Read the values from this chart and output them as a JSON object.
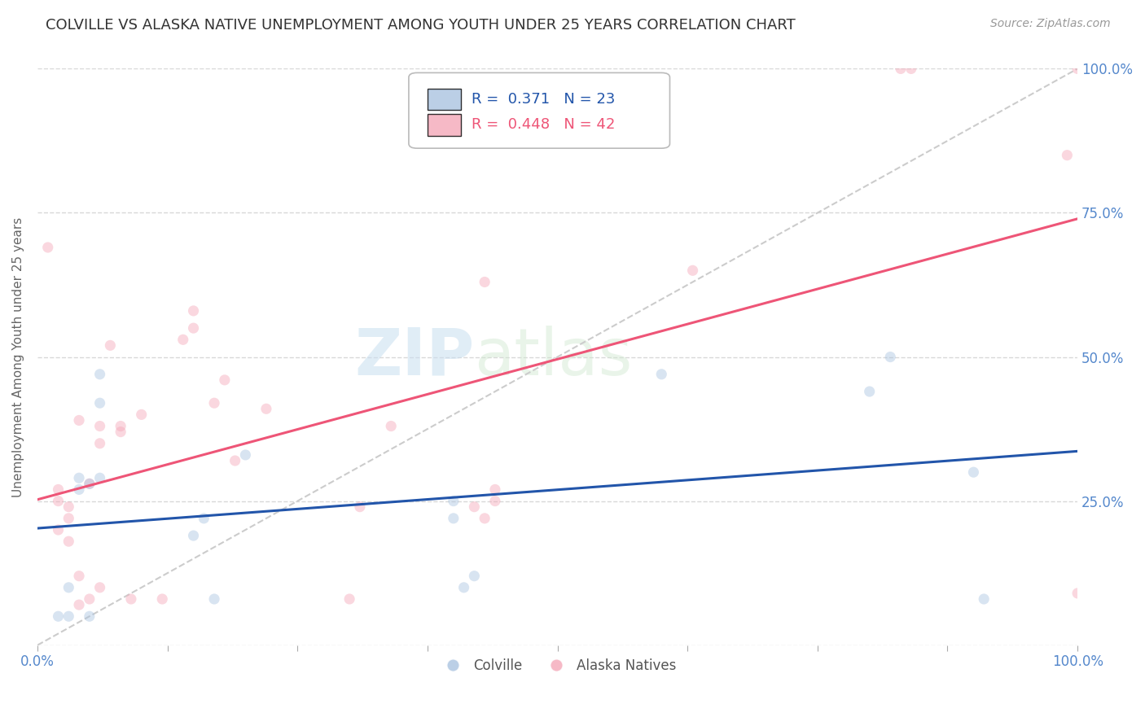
{
  "title": "COLVILLE VS ALASKA NATIVE UNEMPLOYMENT AMONG YOUTH UNDER 25 YEARS CORRELATION CHART",
  "source": "Source: ZipAtlas.com",
  "ylabel": "Unemployment Among Youth under 25 years",
  "watermark_zip": "ZIP",
  "watermark_atlas": "atlas",
  "colville_color": "#aac4e0",
  "alaska_color": "#f4a8b8",
  "colville_line_color": "#2255aa",
  "alaska_line_color": "#ee5577",
  "diagonal_color": "#cccccc",
  "ytick_color": "#5588cc",
  "colville_points_x": [
    0.02,
    0.03,
    0.03,
    0.04,
    0.04,
    0.05,
    0.05,
    0.06,
    0.06,
    0.06,
    0.15,
    0.16,
    0.17,
    0.2,
    0.4,
    0.4,
    0.41,
    0.42,
    0.6,
    0.8,
    0.82,
    0.9,
    0.91
  ],
  "colville_points_y": [
    0.05,
    0.1,
    0.05,
    0.27,
    0.29,
    0.05,
    0.28,
    0.29,
    0.42,
    0.47,
    0.19,
    0.22,
    0.08,
    0.33,
    0.22,
    0.25,
    0.1,
    0.12,
    0.47,
    0.44,
    0.5,
    0.3,
    0.08
  ],
  "alaska_points_x": [
    0.01,
    0.02,
    0.02,
    0.02,
    0.03,
    0.03,
    0.03,
    0.04,
    0.04,
    0.04,
    0.05,
    0.05,
    0.06,
    0.06,
    0.06,
    0.07,
    0.08,
    0.08,
    0.09,
    0.1,
    0.12,
    0.14,
    0.15,
    0.15,
    0.17,
    0.18,
    0.19,
    0.22,
    0.3,
    0.31,
    0.34,
    0.42,
    0.43,
    0.43,
    0.44,
    0.44,
    0.63,
    0.83,
    0.84,
    0.99,
    1.0,
    1.0
  ],
  "alaska_points_y": [
    0.69,
    0.2,
    0.25,
    0.27,
    0.18,
    0.22,
    0.24,
    0.07,
    0.12,
    0.39,
    0.08,
    0.28,
    0.1,
    0.35,
    0.38,
    0.52,
    0.37,
    0.38,
    0.08,
    0.4,
    0.08,
    0.53,
    0.55,
    0.58,
    0.42,
    0.46,
    0.32,
    0.41,
    0.08,
    0.24,
    0.38,
    0.24,
    0.22,
    0.63,
    0.25,
    0.27,
    0.65,
    1.0,
    1.0,
    0.85,
    0.09,
    1.0
  ],
  "xlim": [
    0.0,
    1.0
  ],
  "ylim": [
    0.0,
    1.0
  ],
  "yticks": [
    0.0,
    0.25,
    0.5,
    0.75,
    1.0
  ],
  "ytick_labels_right": [
    "",
    "25.0%",
    "50.0%",
    "75.0%",
    "100.0%"
  ],
  "xtick_positions": [
    0.0,
    0.125,
    0.25,
    0.375,
    0.5,
    0.625,
    0.75,
    0.875,
    1.0
  ],
  "background_color": "#ffffff",
  "grid_color": "#d8d8d8",
  "title_fontsize": 13,
  "axis_label_fontsize": 11,
  "tick_fontsize": 12,
  "legend_fontsize": 13,
  "source_fontsize": 10,
  "marker_size": 90,
  "marker_alpha": 0.45,
  "line_width": 2.2
}
